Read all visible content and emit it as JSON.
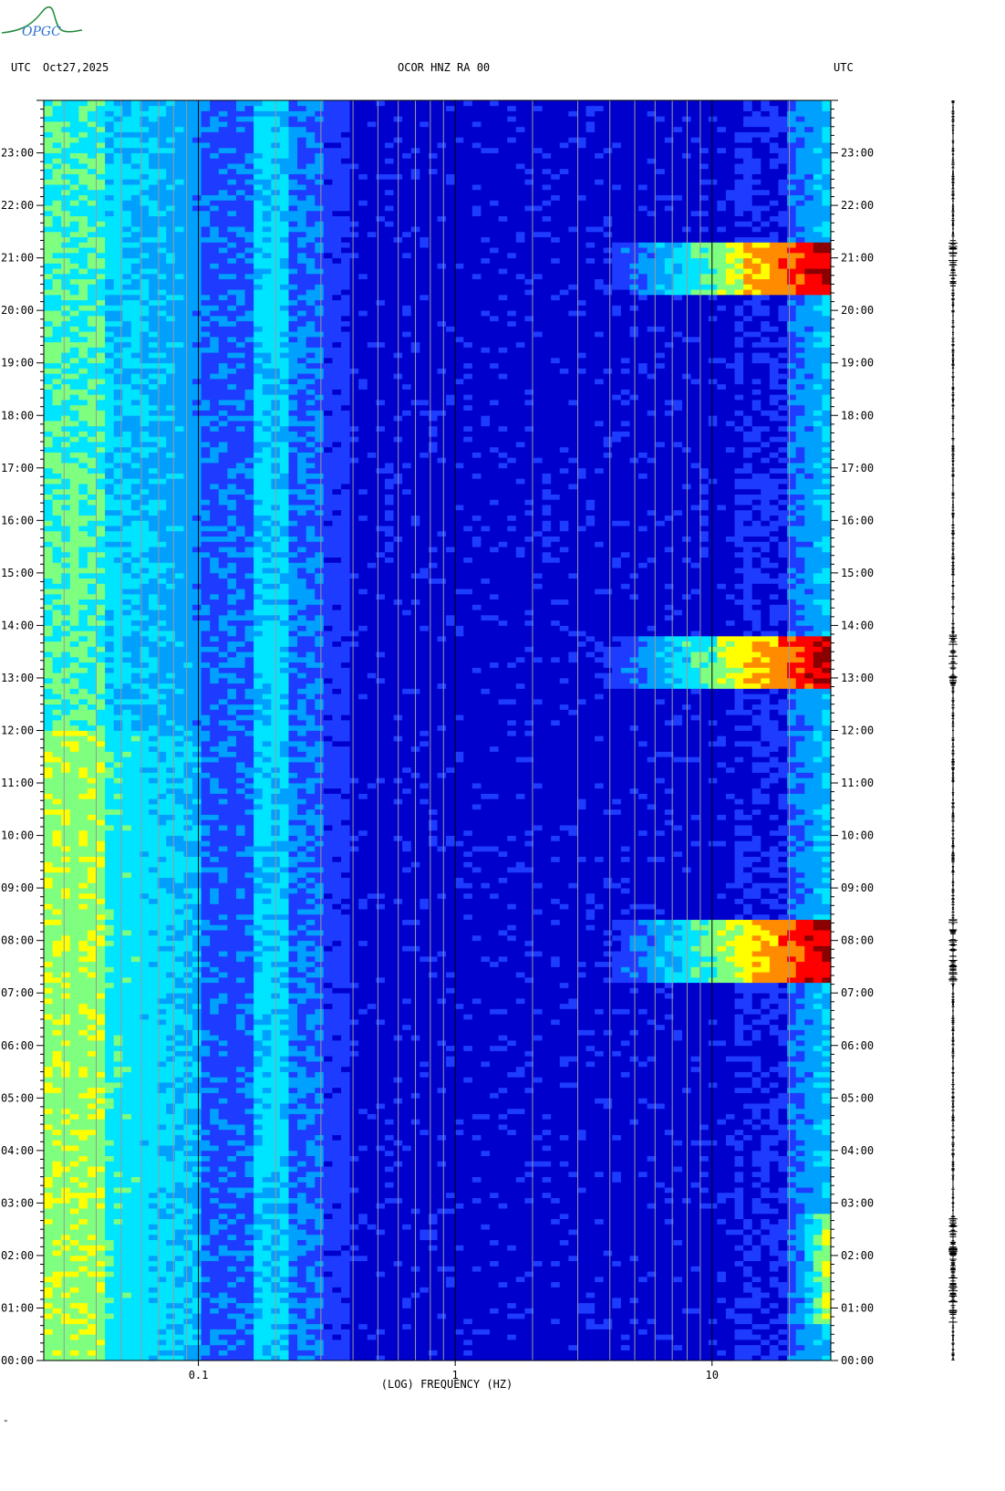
{
  "logo": {
    "text": "OPGC",
    "color": "#1f8a3a"
  },
  "header": {
    "left_tz": "UTC",
    "date": "Oct27,2025",
    "station": "OCOR HNZ RA 00",
    "right_tz": "UTC"
  },
  "footer": {
    "mark": "\""
  },
  "chart_data": {
    "type": "heatmap",
    "title": "OCOR HNZ RA 00",
    "xlabel": "(LOG) FREQUENCY (HZ)",
    "ylabel": "",
    "x_scale": "log",
    "xlim": [
      0.025,
      29
    ],
    "ylim": [
      "00:00",
      "24:00"
    ],
    "x_tick_labels": [
      {
        "value": 0.1,
        "label": "0.1"
      },
      {
        "value": 1,
        "label": "1"
      },
      {
        "value": 10,
        "label": "10"
      }
    ],
    "y_tick_labels": [
      "00:00",
      "01:00",
      "02:00",
      "03:00",
      "04:00",
      "05:00",
      "06:00",
      "07:00",
      "08:00",
      "09:00",
      "10:00",
      "11:00",
      "12:00",
      "13:00",
      "14:00",
      "15:00",
      "16:00",
      "17:00",
      "18:00",
      "19:00",
      "20:00",
      "21:00",
      "22:00",
      "23:00"
    ],
    "colormap": [
      "#00008b",
      "#0000cd",
      "#1e3cff",
      "#00a0ff",
      "#00e5ff",
      "#7fff7f",
      "#ffff00",
      "#ff8c00",
      "#ff0000",
      "#8b0000"
    ],
    "background_color": "#0000cd",
    "grid": true,
    "events": [
      {
        "start": "07:10",
        "end": "08:25",
        "fmin": 3,
        "fmax": 29,
        "peak_color": "#8b0000"
      },
      {
        "start": "12:50",
        "end": "13:50",
        "fmin": 3,
        "fmax": 29,
        "peak_color": "#8b0000"
      },
      {
        "start": "20:20",
        "end": "21:20",
        "fmin": 3,
        "fmax": 29,
        "peak_color": "#8b0000"
      },
      {
        "start": "00:40",
        "end": "02:50",
        "fmin": 18,
        "fmax": 29,
        "peak_color": "#cc0000"
      }
    ]
  }
}
